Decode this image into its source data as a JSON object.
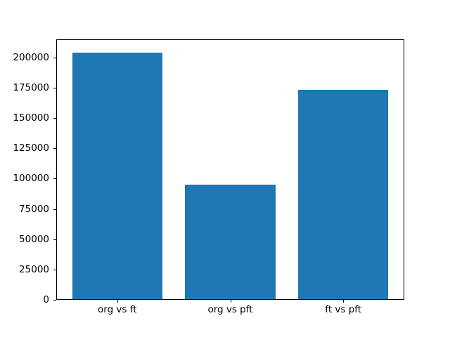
{
  "chart_data": {
    "type": "bar",
    "title": "",
    "xlabel": "",
    "ylabel": "",
    "categories": [
      "org vs ft",
      "org vs pft",
      "ft vs pft"
    ],
    "values": [
      204000,
      95000,
      173000
    ],
    "yticks": [
      0,
      25000,
      50000,
      75000,
      100000,
      125000,
      150000,
      175000,
      200000
    ],
    "ylim": [
      0,
      215000
    ],
    "xlim": [
      -0.54,
      2.54
    ],
    "bar_width_units": 0.8,
    "bar_color": "#1f77b4",
    "axis_color": "#000000",
    "background_color": "#ffffff",
    "grid": false,
    "legend": "none"
  }
}
